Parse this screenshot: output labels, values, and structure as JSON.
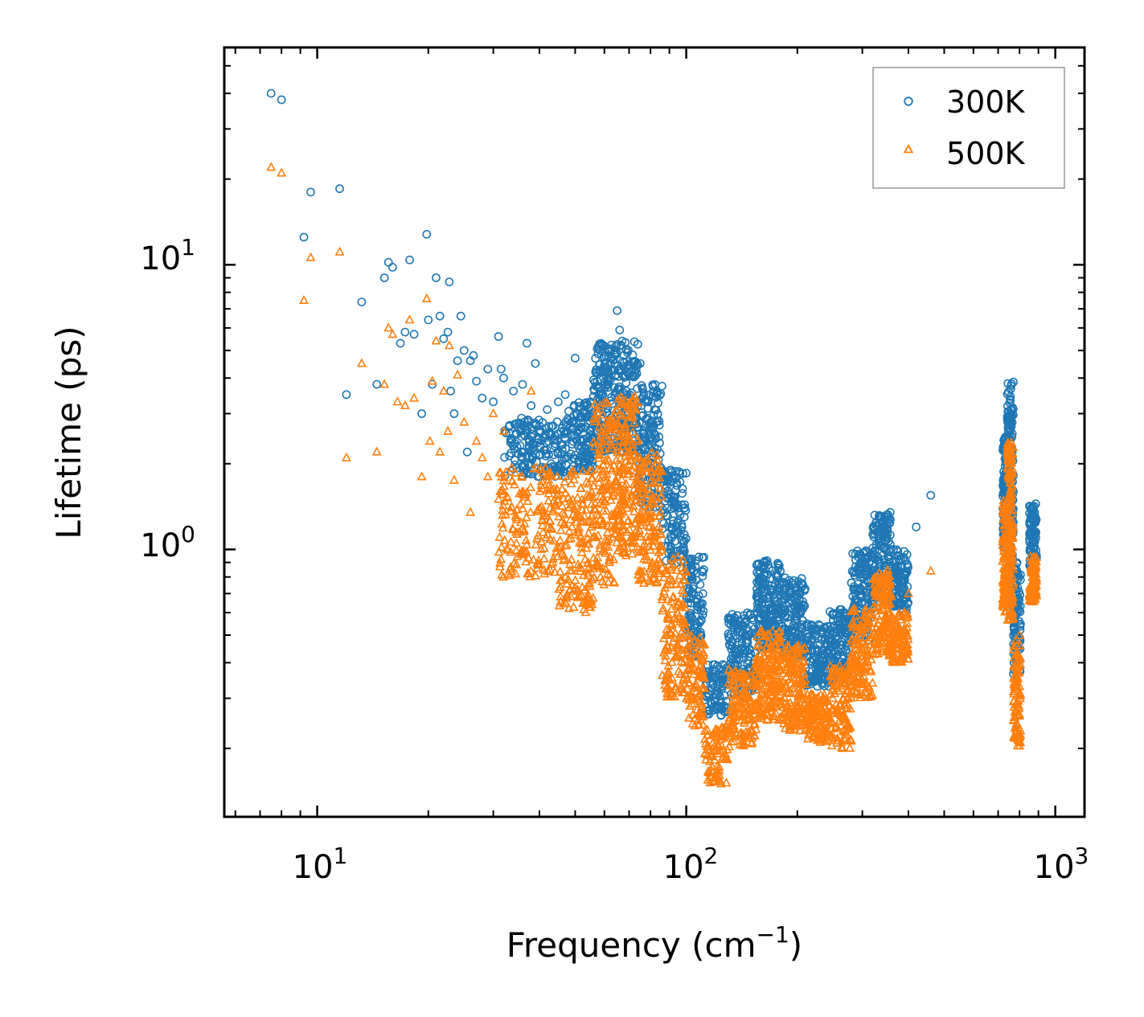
{
  "chart_data": {
    "type": "scatter",
    "xscale": "log",
    "yscale": "log",
    "xlim": [
      5.6,
      1200
    ],
    "ylim": [
      0.115,
      58
    ],
    "x_ticks": [
      {
        "value": 10,
        "base": "10",
        "exp": "1"
      },
      {
        "value": 100,
        "base": "10",
        "exp": "2"
      },
      {
        "value": 1000,
        "base": "10",
        "exp": "3"
      }
    ],
    "y_ticks": [
      {
        "value": 1,
        "base": "10",
        "exp": "0"
      },
      {
        "value": 10,
        "base": "10",
        "exp": "1"
      }
    ],
    "xlabel": {
      "main": "Frequency (cm",
      "sup": "−1",
      "close": ")"
    },
    "ylabel": "Lifetime (ps)",
    "legend": {
      "position": "upper right"
    },
    "series": [
      {
        "name": "300K",
        "marker": "circle",
        "color": "#1f77b4",
        "points": [
          [
            7.5,
            40
          ],
          [
            8.0,
            38
          ],
          [
            9.2,
            12.5
          ],
          [
            9.6,
            18
          ],
          [
            11.5,
            18.5
          ],
          [
            12,
            3.5
          ],
          [
            13.2,
            7.4
          ],
          [
            14.5,
            3.8
          ],
          [
            15.2,
            9
          ],
          [
            15.6,
            10.2
          ],
          [
            16,
            9.8
          ],
          [
            16.8,
            5.3
          ],
          [
            17.3,
            5.8
          ],
          [
            17.8,
            10.4
          ],
          [
            18.3,
            5.7
          ],
          [
            19.2,
            3
          ],
          [
            19.8,
            12.8
          ],
          [
            20,
            6.4
          ],
          [
            20.5,
            3.8
          ],
          [
            21,
            9
          ],
          [
            21.5,
            6.6
          ],
          [
            22,
            5.5
          ],
          [
            22.6,
            5.8
          ],
          [
            22.8,
            8.7
          ],
          [
            23,
            3.6
          ],
          [
            23.5,
            3
          ],
          [
            24,
            4.6
          ],
          [
            24.5,
            6.6
          ],
          [
            25,
            5
          ],
          [
            25.5,
            2.2
          ],
          [
            26,
            4.6
          ],
          [
            26.5,
            4.8
          ],
          [
            27,
            3.9
          ],
          [
            28,
            3.4
          ],
          [
            29,
            4.3
          ],
          [
            30,
            3.3
          ],
          [
            31,
            5.6
          ],
          [
            31.5,
            4.3
          ],
          [
            32,
            4
          ],
          [
            34,
            3.6
          ],
          [
            35,
            2.7
          ],
          [
            36,
            3.8
          ],
          [
            37,
            5.3
          ],
          [
            38,
            3.2
          ],
          [
            39,
            4.5
          ],
          [
            42,
            3.1
          ],
          [
            45,
            3.3
          ],
          [
            47,
            3.5
          ],
          [
            50,
            4.7
          ],
          [
            55,
            3.3
          ],
          [
            58,
            3.5
          ],
          [
            65,
            6.9
          ],
          [
            66,
            5.9
          ],
          [
            75,
            4.5
          ],
          [
            460,
            1.55
          ],
          [
            420,
            1.2
          ]
        ],
        "bands": [
          {
            "x0": 32,
            "x1": 47,
            "ylo": 1.8,
            "yhi": 2.9,
            "n": 170
          },
          {
            "x0": 47,
            "x1": 56,
            "ylo": 1.9,
            "yhi": 3.3,
            "n": 130
          },
          {
            "x0": 56,
            "x1": 65,
            "ylo": 2.2,
            "yhi": 5.3,
            "n": 150
          },
          {
            "x0": 65,
            "x1": 74,
            "ylo": 2.2,
            "yhi": 5.4,
            "n": 150
          },
          {
            "x0": 74,
            "x1": 86,
            "ylo": 1.4,
            "yhi": 3.8,
            "n": 140
          },
          {
            "x0": 86,
            "x1": 100,
            "ylo": 0.9,
            "yhi": 1.9,
            "n": 120
          },
          {
            "x0": 100,
            "x1": 112,
            "ylo": 0.42,
            "yhi": 0.95,
            "n": 100
          },
          {
            "x0": 112,
            "x1": 130,
            "ylo": 0.26,
            "yhi": 0.4,
            "n": 90
          },
          {
            "x0": 130,
            "x1": 155,
            "ylo": 0.3,
            "yhi": 0.6,
            "n": 150
          },
          {
            "x0": 155,
            "x1": 180,
            "ylo": 0.45,
            "yhi": 0.92,
            "n": 170
          },
          {
            "x0": 180,
            "x1": 210,
            "ylo": 0.42,
            "yhi": 0.8,
            "n": 160
          },
          {
            "x0": 210,
            "x1": 245,
            "ylo": 0.33,
            "yhi": 0.55,
            "n": 140
          },
          {
            "x0": 245,
            "x1": 280,
            "ylo": 0.34,
            "yhi": 0.62,
            "n": 120
          },
          {
            "x0": 280,
            "x1": 320,
            "ylo": 0.48,
            "yhi": 1.0,
            "n": 140
          },
          {
            "x0": 320,
            "x1": 360,
            "ylo": 0.65,
            "yhi": 1.35,
            "n": 150
          },
          {
            "x0": 360,
            "x1": 400,
            "ylo": 0.6,
            "yhi": 1.0,
            "n": 100
          },
          {
            "x0": 720,
            "x1": 740,
            "ylo": 1.0,
            "yhi": 2.5,
            "n": 100
          },
          {
            "x0": 740,
            "x1": 770,
            "ylo": 0.9,
            "yhi": 3.9,
            "n": 160
          },
          {
            "x0": 770,
            "x1": 805,
            "ylo": 0.36,
            "yhi": 0.9,
            "n": 100
          },
          {
            "x0": 850,
            "x1": 890,
            "ylo": 0.85,
            "yhi": 1.45,
            "n": 100
          }
        ]
      },
      {
        "name": "500K",
        "marker": "triangle",
        "color": "#ff7f0e",
        "points": [
          [
            7.5,
            22
          ],
          [
            8.0,
            21
          ],
          [
            9.2,
            7.5
          ],
          [
            9.6,
            10.6
          ],
          [
            11.5,
            11.1
          ],
          [
            12,
            2.1
          ],
          [
            13.2,
            4.5
          ],
          [
            14.5,
            2.2
          ],
          [
            15.2,
            3.8
          ],
          [
            15.6,
            6
          ],
          [
            16,
            5.7
          ],
          [
            16.5,
            3.3
          ],
          [
            17.3,
            3.2
          ],
          [
            17.8,
            6.4
          ],
          [
            18.3,
            3.4
          ],
          [
            19.2,
            1.8
          ],
          [
            19.8,
            7.6
          ],
          [
            20.2,
            2.4
          ],
          [
            20.5,
            3.9
          ],
          [
            21,
            5.4
          ],
          [
            21.5,
            2.2
          ],
          [
            22,
            3.6
          ],
          [
            22.6,
            2.6
          ],
          [
            22.8,
            5.2
          ],
          [
            23.5,
            1.75
          ],
          [
            24,
            4.1
          ],
          [
            25,
            2.8
          ],
          [
            26,
            1.35
          ],
          [
            27,
            2.4
          ],
          [
            28,
            2.1
          ],
          [
            29,
            1.8
          ],
          [
            30,
            3
          ],
          [
            31,
            1.5
          ],
          [
            32,
            2.6
          ],
          [
            38,
            3.6
          ],
          [
            400,
            0.7
          ],
          [
            460,
            0.84
          ],
          [
            375,
            0.45
          ]
        ],
        "bands": [
          {
            "x0": 31,
            "x1": 45,
            "ylo": 0.8,
            "yhi": 2.0,
            "n": 180
          },
          {
            "x0": 45,
            "x1": 56,
            "ylo": 0.6,
            "yhi": 1.9,
            "n": 160
          },
          {
            "x0": 56,
            "x1": 65,
            "ylo": 0.75,
            "yhi": 3.3,
            "n": 170
          },
          {
            "x0": 65,
            "x1": 74,
            "ylo": 0.95,
            "yhi": 3.5,
            "n": 170
          },
          {
            "x0": 74,
            "x1": 86,
            "ylo": 0.75,
            "yhi": 2.2,
            "n": 150
          },
          {
            "x0": 86,
            "x1": 100,
            "ylo": 0.3,
            "yhi": 0.95,
            "n": 140
          },
          {
            "x0": 100,
            "x1": 112,
            "ylo": 0.24,
            "yhi": 0.5,
            "n": 100
          },
          {
            "x0": 112,
            "x1": 130,
            "ylo": 0.15,
            "yhi": 0.24,
            "n": 90
          },
          {
            "x0": 130,
            "x1": 155,
            "ylo": 0.2,
            "yhi": 0.38,
            "n": 150
          },
          {
            "x0": 155,
            "x1": 180,
            "ylo": 0.25,
            "yhi": 0.52,
            "n": 170
          },
          {
            "x0": 180,
            "x1": 210,
            "ylo": 0.23,
            "yhi": 0.46,
            "n": 160
          },
          {
            "x0": 210,
            "x1": 245,
            "ylo": 0.21,
            "yhi": 0.31,
            "n": 140
          },
          {
            "x0": 245,
            "x1": 280,
            "ylo": 0.2,
            "yhi": 0.4,
            "n": 120
          },
          {
            "x0": 280,
            "x1": 320,
            "ylo": 0.3,
            "yhi": 0.62,
            "n": 140
          },
          {
            "x0": 320,
            "x1": 360,
            "ylo": 0.42,
            "yhi": 0.85,
            "n": 150
          },
          {
            "x0": 360,
            "x1": 400,
            "ylo": 0.4,
            "yhi": 0.6,
            "n": 100
          },
          {
            "x0": 720,
            "x1": 740,
            "ylo": 0.6,
            "yhi": 1.5,
            "n": 100
          },
          {
            "x0": 740,
            "x1": 770,
            "ylo": 0.55,
            "yhi": 2.4,
            "n": 160
          },
          {
            "x0": 770,
            "x1": 805,
            "ylo": 0.2,
            "yhi": 0.5,
            "n": 100
          },
          {
            "x0": 850,
            "x1": 890,
            "ylo": 0.65,
            "yhi": 0.95,
            "n": 100
          }
        ]
      }
    ]
  }
}
